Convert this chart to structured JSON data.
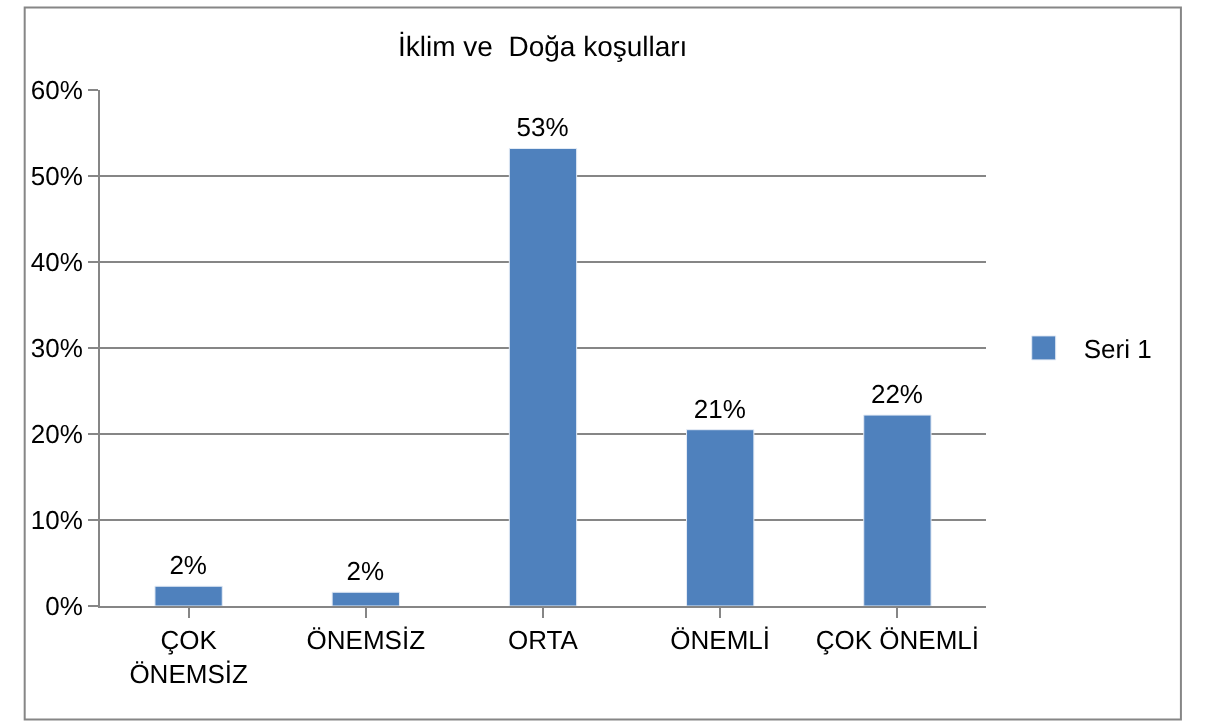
{
  "chart_data": {
    "type": "bar",
    "title": "İklim ve  Doğa koşulları",
    "categories": [
      "ÇOK ÖNEMSİZ",
      "ÖNEMSİZ",
      "ORTA",
      "ÖNEMLİ",
      "ÇOK ÖNEMLİ"
    ],
    "series": [
      {
        "name": "Seri 1",
        "color": "#4f81bd",
        "values": [
          2.3,
          1.6,
          53.2,
          20.5,
          22.2
        ],
        "value_labels": [
          "2%",
          "2%",
          "53%",
          "21%",
          "22%"
        ]
      }
    ],
    "ylim": [
      0,
      60
    ],
    "yticks": [
      {
        "value": 0,
        "label": "0%"
      },
      {
        "value": 10,
        "label": "10%"
      },
      {
        "value": 20,
        "label": "20%"
      },
      {
        "value": 30,
        "label": "30%"
      },
      {
        "value": 40,
        "label": "40%"
      },
      {
        "value": 50,
        "label": "50%"
      },
      {
        "value": 60,
        "label": "60%"
      }
    ],
    "grid": "y",
    "legend": "right"
  }
}
